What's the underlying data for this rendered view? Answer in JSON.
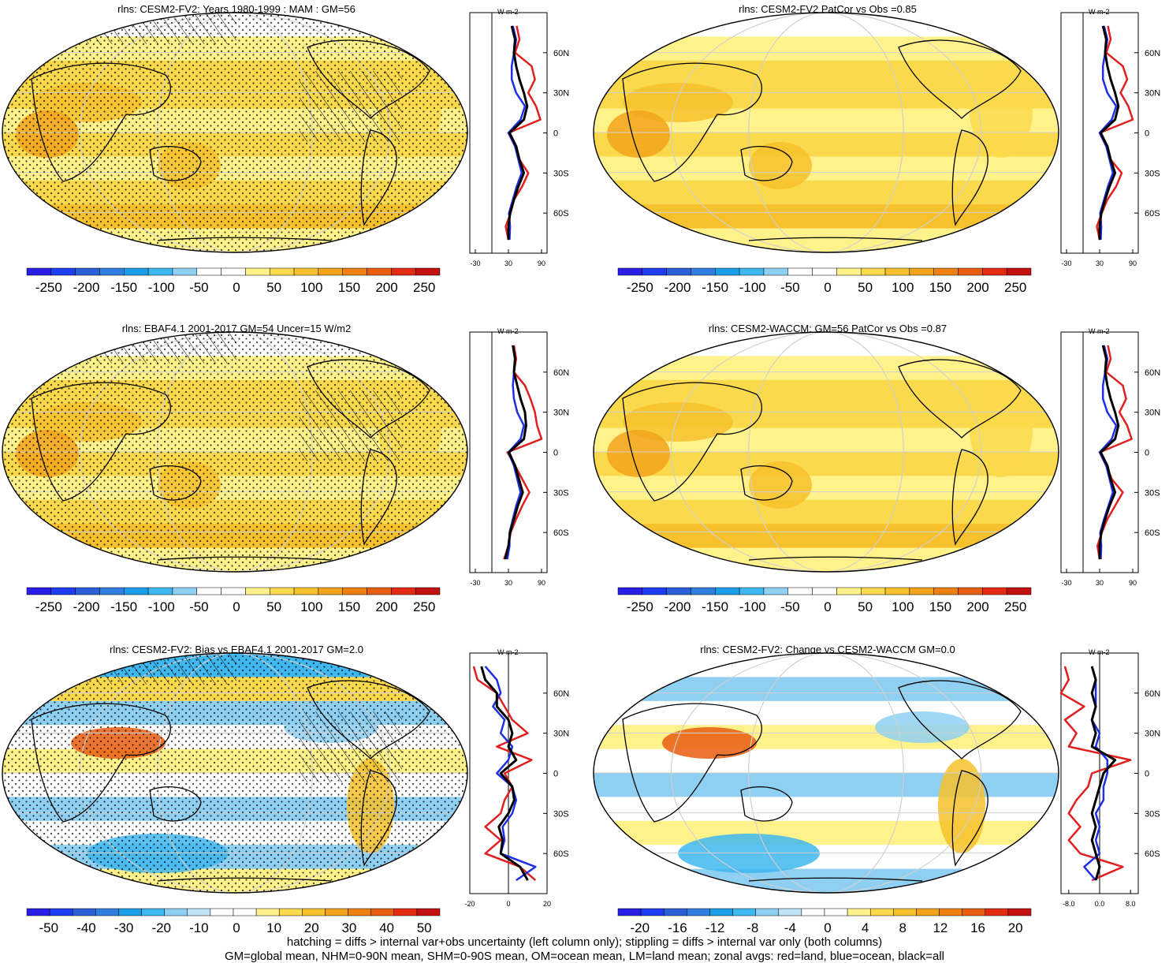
{
  "colors": {
    "land": "#e02020",
    "ocean": "#1f2fe6",
    "all": "#000000"
  },
  "footer": {
    "line1": "hatching = diffs > internal var+obs uncertainty (left column only); stippling = diffs > internal var only (both columns)",
    "line2": "GM=global mean, NHM=0-90N mean, SHM=0-90S mean, OM=ocean mean, LM=land mean; zonal avgs: red=land, blue=ocean, black=all"
  },
  "panels": [
    {
      "title": "rlns: CESM2-FV2: Years 1980-1999 : MAM : GM=56",
      "scale": "abs",
      "hatch": true,
      "stipple": true,
      "colorbar": {
        "labels": [
          "-250",
          "-200",
          "-150",
          "-100",
          "-50",
          "0",
          "50",
          "100",
          "150",
          "200",
          "250"
        ]
      },
      "zonal": {
        "unit": "W m-2",
        "xlim": [
          -40,
          100
        ],
        "xticks": [
          "-30",
          "30",
          "90"
        ],
        "lat_ticks": [
          "60N",
          "30N",
          "0",
          "30S",
          "60S"
        ]
      }
    },
    {
      "title": "rlns: CESM2-FV2 PatCor vs Obs =0.85",
      "scale": "abs",
      "hatch": false,
      "stipple": false,
      "colorbar": {
        "labels": [
          "-250",
          "-200",
          "-150",
          "-100",
          "-50",
          "0",
          "50",
          "100",
          "150",
          "200",
          "250"
        ]
      },
      "zonal": {
        "unit": "W m-2",
        "xlim": [
          -40,
          100
        ],
        "xticks": [
          "-30",
          "30",
          "90"
        ],
        "lat_ticks": [
          "60N",
          "30N",
          "0",
          "30S",
          "60S"
        ]
      }
    },
    {
      "title": "rlns: EBAF4.1 2001-2017 GM=54 Uncer=15 W/m2",
      "scale": "abs",
      "hatch": true,
      "stipple": true,
      "colorbar": {
        "labels": [
          "-250",
          "-200",
          "-150",
          "-100",
          "-50",
          "0",
          "50",
          "100",
          "150",
          "200",
          "250"
        ]
      },
      "zonal": {
        "unit": "W m-2",
        "xlim": [
          -40,
          100
        ],
        "xticks": [
          "-30",
          "30",
          "90"
        ],
        "lat_ticks": [
          "60N",
          "30N",
          "0",
          "30S",
          "60S"
        ]
      }
    },
    {
      "title": "rlns: CESM2-WACCM: GM=56 PatCor vs Obs =0.87",
      "scale": "abs",
      "hatch": false,
      "stipple": false,
      "colorbar": {
        "labels": [
          "-250",
          "-200",
          "-150",
          "-100",
          "-50",
          "0",
          "50",
          "100",
          "150",
          "200",
          "250"
        ]
      },
      "zonal": {
        "unit": "W m-2",
        "xlim": [
          -40,
          100
        ],
        "xticks": [
          "-30",
          "30",
          "90"
        ],
        "lat_ticks": [
          "60N",
          "30N",
          "0",
          "30S",
          "60S"
        ]
      }
    },
    {
      "title": "rlns: CESM2-FV2: Bias vs EBAF4.1 2001-2017 GM=2.0",
      "scale": "diff",
      "hatch": true,
      "stipple": true,
      "colorbar": {
        "labels": [
          "-50",
          "-40",
          "-30",
          "-20",
          "-10",
          "0",
          "10",
          "20",
          "30",
          "40",
          "50"
        ]
      },
      "zonal": {
        "unit": "W m-2",
        "xlim": [
          -20,
          20
        ],
        "xticks": [
          "-20",
          "0",
          "20"
        ],
        "lat_ticks": [
          "60N",
          "30N",
          "0",
          "30S",
          "60S"
        ]
      }
    },
    {
      "title": "rlns: CESM2-FV2: Change vs CESM2-WACCM GM=0.0",
      "scale": "diff",
      "hatch": false,
      "stipple": false,
      "colorbar": {
        "labels": [
          "-20",
          "-16",
          "-12",
          "-8",
          "-4",
          "0",
          "4",
          "8",
          "12",
          "16",
          "20"
        ]
      },
      "zonal": {
        "unit": "W m-2",
        "xlim": [
          -10,
          10
        ],
        "xticks": [
          "-8.0",
          "0.0",
          "8.0"
        ],
        "lat_ticks": [
          "60N",
          "30N",
          "0",
          "30S",
          "60S"
        ]
      }
    }
  ],
  "chart_data": [
    {
      "type": "line",
      "title": "rlns: CESM2-FV2: Years 1980-1999 : MAM : GM=56",
      "ylim": [
        -90,
        90
      ],
      "xlim": [
        -40,
        100
      ],
      "lat": [
        -80,
        -70,
        -60,
        -50,
        -40,
        -30,
        -20,
        -10,
        0,
        10,
        20,
        30,
        40,
        50,
        60,
        70,
        80
      ],
      "series": [
        {
          "name": "land",
          "color": "#e02020",
          "values": [
            30,
            25,
            34,
            40,
            55,
            66,
            50,
            42,
            30,
            88,
            80,
            66,
            78,
            72,
            42,
            50,
            45
          ]
        },
        {
          "name": "ocean",
          "color": "#1f2fe6",
          "values": [
            32,
            33,
            31,
            38,
            45,
            54,
            48,
            42,
            30,
            52,
            60,
            44,
            36,
            36,
            40,
            44,
            38
          ]
        },
        {
          "name": "all",
          "color": "#000000",
          "values": [
            30,
            30,
            33,
            40,
            48,
            58,
            50,
            44,
            32,
            58,
            64,
            58,
            50,
            44,
            40,
            42,
            36
          ]
        }
      ]
    },
    {
      "type": "line",
      "title": "rlns: CESM2-FV2 PatCor vs Obs =0.85",
      "ylim": [
        -90,
        90
      ],
      "xlim": [
        -40,
        100
      ],
      "lat": [
        -80,
        -70,
        -60,
        -50,
        -40,
        -30,
        -20,
        -10,
        0,
        10,
        20,
        30,
        40,
        50,
        60,
        70,
        80
      ],
      "series": [
        {
          "name": "land",
          "color": "#e02020",
          "values": [
            30,
            25,
            34,
            44,
            60,
            70,
            50,
            42,
            30,
            90,
            82,
            68,
            80,
            72,
            42,
            50,
            45
          ]
        },
        {
          "name": "ocean",
          "color": "#1f2fe6",
          "values": [
            32,
            33,
            31,
            38,
            45,
            54,
            48,
            42,
            30,
            52,
            60,
            44,
            36,
            36,
            40,
            44,
            38
          ]
        },
        {
          "name": "all",
          "color": "#000000",
          "values": [
            30,
            30,
            33,
            40,
            48,
            58,
            50,
            44,
            32,
            58,
            64,
            58,
            50,
            44,
            40,
            42,
            36
          ]
        }
      ]
    },
    {
      "type": "line",
      "title": "rlns: EBAF4.1 2001-2017 GM=54 Uncer=15 W/m2",
      "ylim": [
        -90,
        90
      ],
      "xlim": [
        -40,
        100
      ],
      "lat": [
        -80,
        -70,
        -60,
        -50,
        -40,
        -30,
        -20,
        -10,
        0,
        10,
        20,
        30,
        40,
        50,
        60,
        70,
        80
      ],
      "series": [
        {
          "name": "land",
          "color": "#e02020",
          "values": [
            22,
            30,
            34,
            44,
            55,
            68,
            55,
            42,
            28,
            90,
            82,
            78,
            70,
            60,
            40,
            44,
            40
          ]
        },
        {
          "name": "ocean",
          "color": "#1f2fe6",
          "values": [
            28,
            32,
            32,
            38,
            44,
            52,
            46,
            40,
            30,
            52,
            58,
            46,
            40,
            38,
            40,
            42,
            38
          ]
        },
        {
          "name": "all",
          "color": "#000000",
          "values": [
            24,
            30,
            33,
            40,
            47,
            56,
            49,
            42,
            31,
            58,
            62,
            60,
            52,
            46,
            40,
            42,
            38
          ]
        }
      ]
    },
    {
      "type": "line",
      "title": "rlns: CESM2-WACCM: GM=56 PatCor vs Obs =0.87",
      "ylim": [
        -90,
        90
      ],
      "xlim": [
        -40,
        100
      ],
      "lat": [
        -80,
        -70,
        -60,
        -50,
        -40,
        -30,
        -20,
        -10,
        0,
        10,
        20,
        30,
        40,
        50,
        60,
        70,
        80
      ],
      "series": [
        {
          "name": "land",
          "color": "#e02020",
          "values": [
            30,
            26,
            34,
            44,
            58,
            72,
            52,
            42,
            30,
            88,
            80,
            66,
            78,
            72,
            42,
            50,
            45
          ]
        },
        {
          "name": "ocean",
          "color": "#1f2fe6",
          "values": [
            32,
            33,
            31,
            38,
            46,
            54,
            48,
            42,
            30,
            52,
            60,
            44,
            36,
            36,
            40,
            44,
            38
          ]
        },
        {
          "name": "all",
          "color": "#000000",
          "values": [
            30,
            30,
            33,
            40,
            48,
            58,
            50,
            44,
            32,
            58,
            64,
            58,
            50,
            44,
            40,
            42,
            36
          ]
        }
      ]
    },
    {
      "type": "line",
      "title": "rlns: CESM2-FV2: Bias vs EBAF4.1 2001-2017 GM=2.0",
      "ylim": [
        -90,
        90
      ],
      "xlim": [
        -20,
        20
      ],
      "lat": [
        -80,
        -70,
        -60,
        -50,
        -40,
        -30,
        -20,
        -10,
        0,
        10,
        20,
        30,
        40,
        50,
        60,
        70,
        80
      ],
      "series": [
        {
          "name": "land",
          "color": "#e02020",
          "values": [
            14,
            6,
            -12,
            -4,
            -12,
            -4,
            -2,
            2,
            -2,
            12,
            -6,
            10,
            2,
            -2,
            -6,
            -16,
            -18
          ]
        },
        {
          "name": "ocean",
          "color": "#1f2fe6",
          "values": [
            4,
            14,
            -4,
            -2,
            -3,
            2,
            4,
            2,
            -6,
            0,
            2,
            -4,
            -2,
            -8,
            -4,
            -6,
            -12
          ]
        },
        {
          "name": "all",
          "color": "#000000",
          "values": [
            10,
            6,
            -4,
            -3,
            -5,
            0,
            3,
            2,
            -4,
            4,
            0,
            2,
            0,
            -6,
            -6,
            -12,
            -14
          ]
        }
      ]
    },
    {
      "type": "line",
      "title": "rlns: CESM2-FV2: Change vs CESM2-WACCM GM=0.0",
      "ylim": [
        -90,
        90
      ],
      "xlim": [
        -10,
        10
      ],
      "lat": [
        -80,
        -70,
        -60,
        -50,
        -40,
        -30,
        -20,
        -10,
        0,
        10,
        20,
        30,
        40,
        50,
        60,
        70,
        80
      ],
      "series": [
        {
          "name": "land",
          "color": "#e02020",
          "values": [
            -2,
            6,
            -5,
            -8,
            -5,
            -8,
            -6,
            -3,
            -2,
            8,
            -8,
            -6,
            -9,
            -4,
            -10,
            -8,
            -9
          ]
        },
        {
          "name": "ocean",
          "color": "#1f2fe6",
          "values": [
            -1,
            -4,
            0,
            -1,
            0,
            -1,
            1,
            1,
            2,
            2,
            -1,
            0,
            -2,
            -1,
            -1,
            -1,
            -2
          ]
        },
        {
          "name": "all",
          "color": "#000000",
          "values": [
            -1,
            0,
            -1,
            -2,
            -1,
            -2,
            -1,
            0,
            1,
            4,
            -2,
            -1,
            -2,
            -1,
            -2,
            -1,
            -2
          ]
        }
      ]
    }
  ]
}
